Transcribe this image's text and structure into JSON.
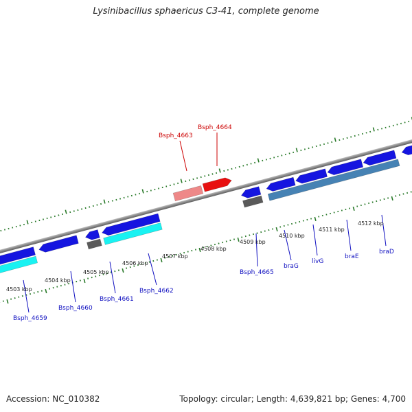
{
  "title": "Lysinibacillus sphaericus C3-41, complete genome",
  "footer": {
    "accession": "Accession: NC_010382",
    "summary": "Topology: circular; Length: 4,639,821 bp; Genes: 4,700"
  },
  "colors": {
    "backbone": "#8a8a8a",
    "tick": "#2a7a2a",
    "gene_blue": "#1515e0",
    "gene_cyan": "#19f2f2",
    "gene_gray": "#5a5a5a",
    "gene_red": "#e81010",
    "gene_pink": "#ee8888",
    "gene_steel": "#4682b4",
    "label_blue": "#1010c0",
    "label_red": "#cc0000"
  },
  "ticks": [
    "4503 kbp",
    "4504 kbp",
    "4505 kbp",
    "4506 kbp",
    "4507 kbp",
    "4508 kbp",
    "4509 kbp",
    "4510 kbp",
    "4511 kbp",
    "4512 kbp"
  ],
  "gene_labels": {
    "bsph_4659": "Bsph_4659",
    "bsph_4660": "Bsph_4660",
    "bsph_4661": "Bsph_4661",
    "bsph_4662": "Bsph_4662",
    "bsph_4663": "Bsph_4663",
    "bsph_4664": "Bsph_4664",
    "bsph_4665": "Bsph_4665",
    "brag": "braG",
    "livg": "livG",
    "brae": "braE",
    "brad": "braD"
  }
}
